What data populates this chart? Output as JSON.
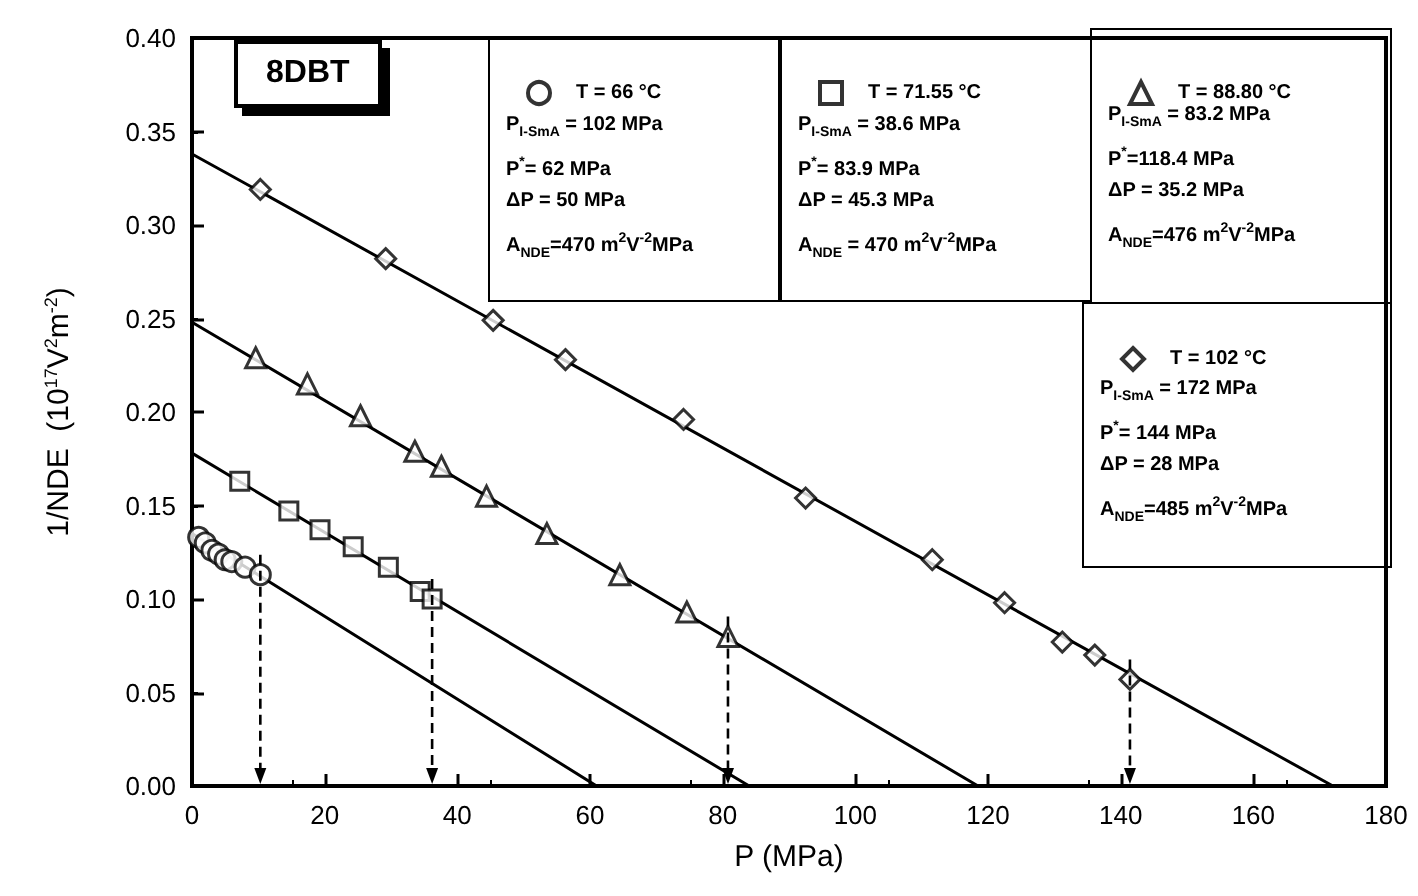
{
  "chart_data": {
    "type": "scatter",
    "title": "8DBT",
    "xlabel": "P (MPa)",
    "ylabel": "1/NDE  (10$^{17}$V$^{2}$m$^{-2}$)",
    "xlim": [
      0,
      180
    ],
    "xticks": [
      0,
      20,
      40,
      60,
      80,
      100,
      120,
      140,
      160,
      180
    ],
    "ylim": [
      0,
      0.4
    ],
    "yticks": [
      {
        "value": 0,
        "label": "0.00"
      },
      {
        "value": 0.05,
        "label": "0.05"
      },
      {
        "value": 0.1,
        "label": "0.10"
      },
      {
        "value": 0.15,
        "label": "0.15"
      },
      {
        "value": 0.2,
        "label": "0.20"
      },
      {
        "value": 0.25,
        "label": "0.25"
      },
      {
        "value": 0.3,
        "label": "0.30"
      },
      {
        "value": 0.35,
        "label": "0.35"
      },
      {
        "value": 0.4,
        "label": "0.40"
      }
    ],
    "grid": false,
    "legend": "top right",
    "annotations": [
      "P$_{I-SmA}$ = 102 MPa",
      "P$^{*}$= 62 MPa",
      "ΔP = 50 MPa",
      "A$_{NDE}$=470 m$^{2}$V$^{-2}$MPa",
      "P$_{I-SmA}$ = 38.6 MPa",
      "P$^{*}$= 83.9 MPa",
      "ΔP = 45.3 MPa",
      "A$_{NDE}$ = 470 m$^{2}$V$^{-2}$MPa",
      "P$_{I-SmA}$ = 83.2 MPa",
      "P$^{*}$=118.4 MPa",
      "ΔP = 35.2 MPa",
      "A$_{NDE}$=476 m$^{2}$V$^{-2}$MPa",
      "P$_{I-SmA}$ = 172 MPa",
      "P$^{*}$= 144 MPa",
      "ΔP = 28 MPa",
      "A$_{NDE}$=485  m$^{2}$V$^{-2}$MPa"
    ],
    "series": [
      {
        "name": "T = 66 °C",
        "color": "#000000",
        "marker": "circle",
        "x": [
          1,
          2,
          3,
          4,
          5,
          6,
          8,
          10.3
        ],
        "values": [
          0.133,
          0.13,
          0.126,
          0.124,
          0.121,
          0.12,
          0.117,
          0.113
        ]
      },
      {
        "name": "T = 71.55 °C",
        "color": "#000000",
        "marker": "square",
        "x": [
          7.2,
          14.6,
          19.3,
          24.3,
          29.6,
          34.4,
          36.2
        ],
        "values": [
          0.163,
          0.147,
          0.137,
          0.128,
          0.117,
          0.104,
          0.1
        ]
      },
      {
        "name": "T = 88.80 °C",
        "color": "#000000",
        "marker": "triangle",
        "x": [
          9.6,
          17.4,
          25.4,
          33.6,
          37.6,
          44.4,
          53.5,
          64.5,
          74.6,
          80.8
        ],
        "values": [
          0.229,
          0.215,
          0.198,
          0.179,
          0.171,
          0.155,
          0.135,
          0.113,
          0.093,
          0.08
        ]
      },
      {
        "name": "T = 102 °C",
        "color": "#000000",
        "marker": "diamond",
        "x": [
          10.3,
          29.2,
          45.4,
          56.3,
          74.1,
          92.5,
          111.6,
          122.5,
          131.2,
          136.1,
          141.4
        ],
        "values": [
          0.319,
          0.282,
          0.249,
          0.228,
          0.196,
          0.154,
          0.121,
          0.098,
          0.077,
          0.07,
          0.057
        ]
      },
      {
        "type": "line",
        "color": "#000000",
        "marker": "none",
        "line_style": "solid",
        "x": [
          0,
          61
        ],
        "values": [
          0.135,
          0
        ]
      },
      {
        "type": "line",
        "color": "#000000",
        "marker": "none",
        "line_style": "solid",
        "x": [
          0,
          84
        ],
        "values": [
          0.178,
          0
        ]
      },
      {
        "type": "line",
        "color": "#000000",
        "marker": "none",
        "line_style": "solid",
        "x": [
          0,
          118.5
        ],
        "values": [
          0.248,
          0
        ]
      },
      {
        "type": "line",
        "color": "#000000",
        "marker": "none",
        "line_style": "solid",
        "x": [
          0,
          172
        ],
        "values": [
          0.338,
          0
        ]
      }
    ]
  }
}
